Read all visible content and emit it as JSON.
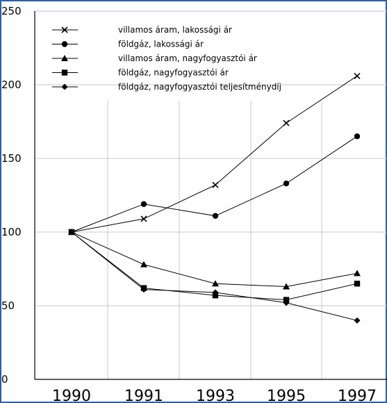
{
  "chart_data": {
    "type": "line",
    "title": "",
    "xlabel": "",
    "ylabel": "",
    "categories": [
      "1990",
      "1991",
      "1993",
      "1995",
      "1997"
    ],
    "ylim": [
      0,
      250
    ],
    "yticks": [
      0,
      50,
      100,
      150,
      200,
      250
    ],
    "grid": true,
    "legend_position": "top-left",
    "series": [
      {
        "name": "villamos áram, lakossági ár",
        "marker": "x",
        "values": [
          100,
          109,
          132,
          174,
          206
        ]
      },
      {
        "name": "földgáz, lakossági ár",
        "marker": "circle",
        "values": [
          100,
          119,
          111,
          133,
          165
        ]
      },
      {
        "name": "villamos áram, nagyfogyasztói ár",
        "marker": "triangle",
        "values": [
          100,
          78,
          65,
          63,
          72
        ]
      },
      {
        "name": "földgáz, nagyfogyasztói ár",
        "marker": "square",
        "values": [
          100,
          62,
          57,
          54,
          65
        ]
      },
      {
        "name": "földgáz, nagyfogyasztói teljesítménydíj",
        "marker": "diamond",
        "values": [
          100,
          61,
          59,
          52,
          40
        ]
      }
    ],
    "colors": {
      "line": "#000000",
      "grid": "#c8c8c8",
      "frame": "#2a5fa8"
    }
  }
}
